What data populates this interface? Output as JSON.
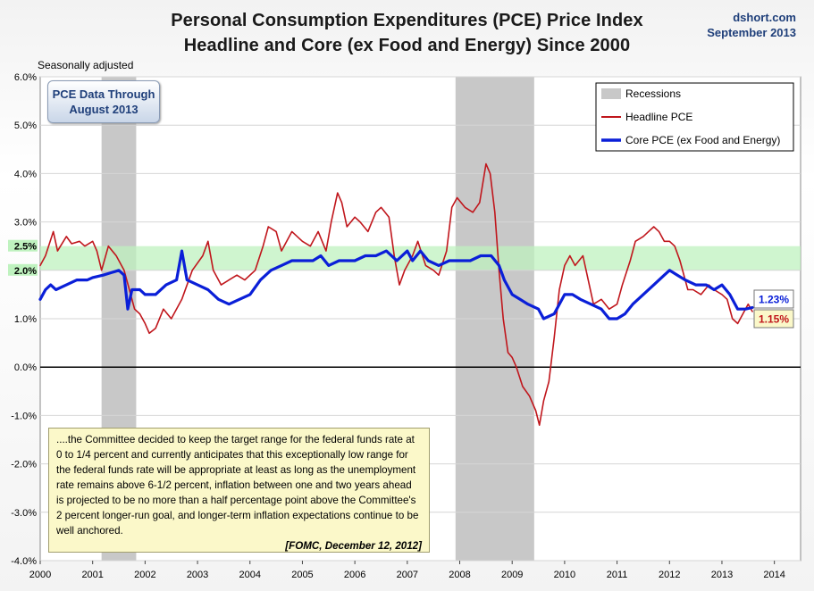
{
  "header": {
    "title_line1": "Personal Consumption Expenditures (PCE) Price Index",
    "title_line2": "Headline and Core (ex Food and Energy) Since 2000",
    "source": "dshort.com",
    "date": "September 2013",
    "seasonal": "Seasonally adjusted"
  },
  "data_box": {
    "line1": "PCE Data Through",
    "line2": "August 2013"
  },
  "quote": {
    "text": "....the Committee decided to keep the target range for the federal funds rate at 0 to 1/4 percent and currently anticipates that this exceptionally low range for the federal funds rate will be appropriate at least as long as the unemployment rate remains above 6-1/2 percent, inflation between one and two years ahead is projected to be no more than a half percentage point above the Committee's 2 percent longer-run goal, and longer-term inflation expectations continue to be well anchored.",
    "source": "[FOMC, December 12, 2012]"
  },
  "colors": {
    "headline": "#c0161c",
    "core": "#0a1fd8",
    "band": "#bff2bf",
    "recession": "#c8c8c8",
    "zero": "#000000"
  },
  "chart_data": {
    "type": "line",
    "xlim": [
      2000,
      2014.5
    ],
    "ylim": [
      -4,
      6
    ],
    "x_ticks": [
      "2000",
      "2001",
      "2002",
      "2003",
      "2004",
      "2005",
      "2006",
      "2007",
      "2008",
      "2009",
      "2010",
      "2011",
      "2012",
      "2013",
      "2014"
    ],
    "y_ticks": [
      "-4.0%",
      "-3.0%",
      "-2.0%",
      "-1.0%",
      "0.0%",
      "1.0%",
      "2.0%",
      "3.0%",
      "4.0%",
      "5.0%",
      "6.0%"
    ],
    "band": {
      "from": 2.0,
      "to": 2.5,
      "labels": [
        "2.0%",
        "2.5%"
      ]
    },
    "recessions": [
      [
        2001.17,
        2001.83
      ],
      [
        2007.92,
        2009.42
      ]
    ],
    "legend": {
      "position": "top-right",
      "entries": [
        "Recessions",
        "Headline PCE",
        "Core PCE (ex Food and Energy)"
      ]
    },
    "end_labels": {
      "core": "1.23%",
      "headline": "1.15%"
    },
    "series": [
      {
        "name": "Headline PCE",
        "points": [
          [
            2000.0,
            2.1
          ],
          [
            2000.1,
            2.3
          ],
          [
            2000.25,
            2.8
          ],
          [
            2000.33,
            2.4
          ],
          [
            2000.5,
            2.7
          ],
          [
            2000.6,
            2.55
          ],
          [
            2000.75,
            2.6
          ],
          [
            2000.85,
            2.5
          ],
          [
            2001.0,
            2.6
          ],
          [
            2001.08,
            2.4
          ],
          [
            2001.17,
            2.0
          ],
          [
            2001.3,
            2.5
          ],
          [
            2001.45,
            2.3
          ],
          [
            2001.6,
            2.0
          ],
          [
            2001.7,
            1.6
          ],
          [
            2001.8,
            1.2
          ],
          [
            2001.9,
            1.1
          ],
          [
            2002.0,
            0.9
          ],
          [
            2002.08,
            0.7
          ],
          [
            2002.2,
            0.8
          ],
          [
            2002.35,
            1.2
          ],
          [
            2002.5,
            1.0
          ],
          [
            2002.7,
            1.4
          ],
          [
            2002.9,
            2.0
          ],
          [
            2003.1,
            2.3
          ],
          [
            2003.2,
            2.6
          ],
          [
            2003.3,
            2.0
          ],
          [
            2003.45,
            1.7
          ],
          [
            2003.6,
            1.8
          ],
          [
            2003.75,
            1.9
          ],
          [
            2003.9,
            1.8
          ],
          [
            2004.1,
            2.0
          ],
          [
            2004.25,
            2.5
          ],
          [
            2004.35,
            2.9
          ],
          [
            2004.5,
            2.8
          ],
          [
            2004.6,
            2.4
          ],
          [
            2004.8,
            2.8
          ],
          [
            2005.0,
            2.6
          ],
          [
            2005.15,
            2.5
          ],
          [
            2005.3,
            2.8
          ],
          [
            2005.45,
            2.4
          ],
          [
            2005.55,
            3.0
          ],
          [
            2005.67,
            3.6
          ],
          [
            2005.75,
            3.4
          ],
          [
            2005.85,
            2.9
          ],
          [
            2006.0,
            3.1
          ],
          [
            2006.1,
            3.0
          ],
          [
            2006.25,
            2.8
          ],
          [
            2006.4,
            3.2
          ],
          [
            2006.5,
            3.3
          ],
          [
            2006.65,
            3.1
          ],
          [
            2006.75,
            2.3
          ],
          [
            2006.85,
            1.7
          ],
          [
            2006.95,
            2.0
          ],
          [
            2007.1,
            2.3
          ],
          [
            2007.2,
            2.6
          ],
          [
            2007.35,
            2.1
          ],
          [
            2007.5,
            2.0
          ],
          [
            2007.6,
            1.9
          ],
          [
            2007.75,
            2.4
          ],
          [
            2007.85,
            3.3
          ],
          [
            2007.95,
            3.5
          ],
          [
            2008.1,
            3.3
          ],
          [
            2008.25,
            3.2
          ],
          [
            2008.38,
            3.4
          ],
          [
            2008.5,
            4.2
          ],
          [
            2008.58,
            4.0
          ],
          [
            2008.67,
            3.2
          ],
          [
            2008.75,
            2.0
          ],
          [
            2008.83,
            1.0
          ],
          [
            2008.92,
            0.3
          ],
          [
            2009.0,
            0.2
          ],
          [
            2009.08,
            0.0
          ],
          [
            2009.2,
            -0.4
          ],
          [
            2009.33,
            -0.6
          ],
          [
            2009.45,
            -0.9
          ],
          [
            2009.52,
            -1.2
          ],
          [
            2009.6,
            -0.7
          ],
          [
            2009.7,
            -0.3
          ],
          [
            2009.8,
            0.6
          ],
          [
            2009.9,
            1.6
          ],
          [
            2010.0,
            2.1
          ],
          [
            2010.1,
            2.3
          ],
          [
            2010.2,
            2.1
          ],
          [
            2010.35,
            2.3
          ],
          [
            2010.45,
            1.8
          ],
          [
            2010.55,
            1.3
          ],
          [
            2010.7,
            1.4
          ],
          [
            2010.85,
            1.2
          ],
          [
            2011.0,
            1.3
          ],
          [
            2011.1,
            1.7
          ],
          [
            2011.25,
            2.2
          ],
          [
            2011.35,
            2.6
          ],
          [
            2011.5,
            2.7
          ],
          [
            2011.6,
            2.8
          ],
          [
            2011.7,
            2.9
          ],
          [
            2011.8,
            2.8
          ],
          [
            2011.9,
            2.6
          ],
          [
            2012.0,
            2.6
          ],
          [
            2012.1,
            2.5
          ],
          [
            2012.2,
            2.2
          ],
          [
            2012.35,
            1.6
          ],
          [
            2012.45,
            1.6
          ],
          [
            2012.6,
            1.5
          ],
          [
            2012.75,
            1.7
          ],
          [
            2012.85,
            1.6
          ],
          [
            2013.0,
            1.5
          ],
          [
            2013.1,
            1.4
          ],
          [
            2013.2,
            1.0
          ],
          [
            2013.3,
            0.9
          ],
          [
            2013.4,
            1.1
          ],
          [
            2013.5,
            1.3
          ],
          [
            2013.58,
            1.15
          ]
        ]
      },
      {
        "name": "Core PCE (ex Food and Energy)",
        "points": [
          [
            2000.0,
            1.4
          ],
          [
            2000.1,
            1.6
          ],
          [
            2000.2,
            1.7
          ],
          [
            2000.3,
            1.6
          ],
          [
            2000.5,
            1.7
          ],
          [
            2000.7,
            1.8
          ],
          [
            2000.9,
            1.8
          ],
          [
            2001.0,
            1.85
          ],
          [
            2001.2,
            1.9
          ],
          [
            2001.35,
            1.95
          ],
          [
            2001.5,
            2.0
          ],
          [
            2001.6,
            1.9
          ],
          [
            2001.67,
            1.2
          ],
          [
            2001.75,
            1.6
          ],
          [
            2001.9,
            1.6
          ],
          [
            2002.0,
            1.5
          ],
          [
            2002.2,
            1.5
          ],
          [
            2002.4,
            1.7
          ],
          [
            2002.6,
            1.8
          ],
          [
            2002.7,
            2.4
          ],
          [
            2002.8,
            1.8
          ],
          [
            2003.0,
            1.7
          ],
          [
            2003.2,
            1.6
          ],
          [
            2003.4,
            1.4
          ],
          [
            2003.6,
            1.3
          ],
          [
            2003.8,
            1.4
          ],
          [
            2004.0,
            1.5
          ],
          [
            2004.2,
            1.8
          ],
          [
            2004.4,
            2.0
          ],
          [
            2004.6,
            2.1
          ],
          [
            2004.8,
            2.2
          ],
          [
            2005.0,
            2.2
          ],
          [
            2005.2,
            2.2
          ],
          [
            2005.35,
            2.3
          ],
          [
            2005.5,
            2.1
          ],
          [
            2005.7,
            2.2
          ],
          [
            2005.85,
            2.2
          ],
          [
            2006.0,
            2.2
          ],
          [
            2006.2,
            2.3
          ],
          [
            2006.4,
            2.3
          ],
          [
            2006.6,
            2.4
          ],
          [
            2006.8,
            2.2
          ],
          [
            2007.0,
            2.4
          ],
          [
            2007.1,
            2.2
          ],
          [
            2007.25,
            2.4
          ],
          [
            2007.4,
            2.2
          ],
          [
            2007.6,
            2.1
          ],
          [
            2007.8,
            2.2
          ],
          [
            2008.0,
            2.2
          ],
          [
            2008.2,
            2.2
          ],
          [
            2008.4,
            2.3
          ],
          [
            2008.6,
            2.3
          ],
          [
            2008.75,
            2.1
          ],
          [
            2008.85,
            1.8
          ],
          [
            2009.0,
            1.5
          ],
          [
            2009.15,
            1.4
          ],
          [
            2009.3,
            1.3
          ],
          [
            2009.5,
            1.2
          ],
          [
            2009.6,
            1.0
          ],
          [
            2009.8,
            1.1
          ],
          [
            2010.0,
            1.5
          ],
          [
            2010.15,
            1.5
          ],
          [
            2010.3,
            1.4
          ],
          [
            2010.5,
            1.3
          ],
          [
            2010.7,
            1.2
          ],
          [
            2010.85,
            1.0
          ],
          [
            2011.0,
            1.0
          ],
          [
            2011.15,
            1.1
          ],
          [
            2011.3,
            1.3
          ],
          [
            2011.5,
            1.5
          ],
          [
            2011.7,
            1.7
          ],
          [
            2011.9,
            1.9
          ],
          [
            2012.0,
            2.0
          ],
          [
            2012.15,
            1.9
          ],
          [
            2012.3,
            1.8
          ],
          [
            2012.5,
            1.7
          ],
          [
            2012.7,
            1.7
          ],
          [
            2012.85,
            1.6
          ],
          [
            2013.0,
            1.7
          ],
          [
            2013.15,
            1.5
          ],
          [
            2013.3,
            1.2
          ],
          [
            2013.45,
            1.2
          ],
          [
            2013.58,
            1.23
          ]
        ]
      }
    ]
  }
}
